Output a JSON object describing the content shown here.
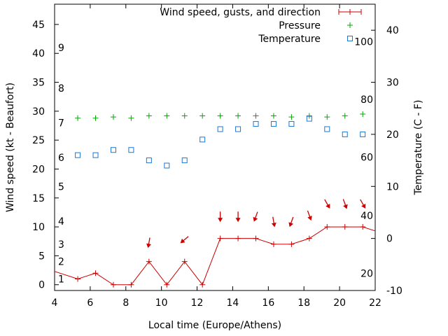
{
  "chart_data": {
    "type": "line",
    "xlabel": "Local time (Europe/Athens)",
    "ylabel": "Wind speed (kt - Beaufort)",
    "y2label": "Temperature (C - F)",
    "xlim": [
      4,
      22
    ],
    "ylim": [
      -1,
      48.5
    ],
    "y2lim": [
      -10,
      45
    ],
    "x_ticks": [
      4,
      6,
      8,
      10,
      12,
      14,
      16,
      18,
      20,
      22
    ],
    "y_ticks": [
      0,
      5,
      10,
      15,
      20,
      25,
      30,
      35,
      40,
      45
    ],
    "y2_ticks": [
      -10,
      0,
      10,
      20,
      30,
      40
    ],
    "beaufort_labels": [
      {
        "label": "1",
        "y": 1
      },
      {
        "label": "2",
        "y": 4
      },
      {
        "label": "3",
        "y": 7
      },
      {
        "label": "4",
        "y": 11
      },
      {
        "label": "5",
        "y": 17
      },
      {
        "label": "6",
        "y": 22
      },
      {
        "label": "7",
        "y": 28
      },
      {
        "label": "8",
        "y": 34
      },
      {
        "label": "9",
        "y": 41
      }
    ],
    "fahrenheit_labels": [
      {
        "label": "20",
        "y2": -6.7
      },
      {
        "label": "40",
        "y2": 4.4
      },
      {
        "label": "60",
        "y2": 15.6
      },
      {
        "label": "80",
        "y2": 26.7
      },
      {
        "label": "100",
        "y2": 37.8
      }
    ],
    "legend": [
      "Wind speed, gusts, and direction",
      "Pressure",
      "Temperature"
    ],
    "legend_position": "top-right",
    "colors": {
      "wind": "#cc0000",
      "pressure": "#00aa00",
      "temperature": "#1f77d0",
      "axis": "#000000"
    },
    "series": [
      {
        "name": "Wind speed, gusts, and direction",
        "x": [
          3.3,
          5.3,
          6.3,
          7.3,
          8.3,
          9.3,
          10.3,
          11.3,
          12.3,
          13.3,
          14.3,
          15.3,
          16.3,
          17.3,
          18.3,
          19.3,
          20.3,
          21.3,
          22.3
        ],
        "values": [
          3,
          1,
          2,
          0,
          0,
          4,
          0,
          4,
          0,
          8,
          8,
          8,
          7,
          7,
          8,
          10,
          10,
          10,
          9
        ]
      },
      {
        "name": "Pressure",
        "x": [
          5.3,
          6.3,
          7.3,
          8.3,
          9.3,
          10.3,
          11.3,
          12.3,
          13.3,
          14.3,
          15.3,
          16.3,
          17.3,
          18.3,
          19.3,
          20.3,
          21.3
        ],
        "values": [
          28.8,
          28.8,
          29.0,
          28.8,
          29.2,
          29.2,
          29.2,
          29.2,
          29.2,
          29.2,
          29.2,
          29.2,
          29.0,
          29.2,
          29.0,
          29.2,
          29.5
        ]
      },
      {
        "name": "Temperature",
        "x": [
          5.3,
          6.3,
          7.3,
          8.3,
          9.3,
          10.3,
          11.3,
          12.3,
          13.3,
          14.3,
          15.3,
          16.3,
          17.3,
          18.3,
          19.3,
          20.3,
          21.3
        ],
        "y2_values": [
          16,
          16,
          17,
          17,
          15,
          14,
          15,
          19,
          21,
          21,
          22,
          22,
          22,
          23,
          21,
          20,
          20
        ]
      }
    ],
    "wind_direction": [
      {
        "x": 9.3,
        "y": 7.3,
        "deg": 10
      },
      {
        "x": 11.3,
        "y": 7.8,
        "deg": 50
      },
      {
        "x": 13.3,
        "y": 11.8,
        "deg": 0
      },
      {
        "x": 14.3,
        "y": 11.8,
        "deg": 0
      },
      {
        "x": 15.3,
        "y": 11.8,
        "deg": 20
      },
      {
        "x": 16.3,
        "y": 10.9,
        "deg": 350
      },
      {
        "x": 17.3,
        "y": 10.9,
        "deg": 20
      },
      {
        "x": 18.3,
        "y": 12.0,
        "deg": 340
      },
      {
        "x": 19.3,
        "y": 14.0,
        "deg": 330
      },
      {
        "x": 20.3,
        "y": 14.0,
        "deg": 340
      },
      {
        "x": 21.3,
        "y": 14.0,
        "deg": 330
      }
    ]
  }
}
